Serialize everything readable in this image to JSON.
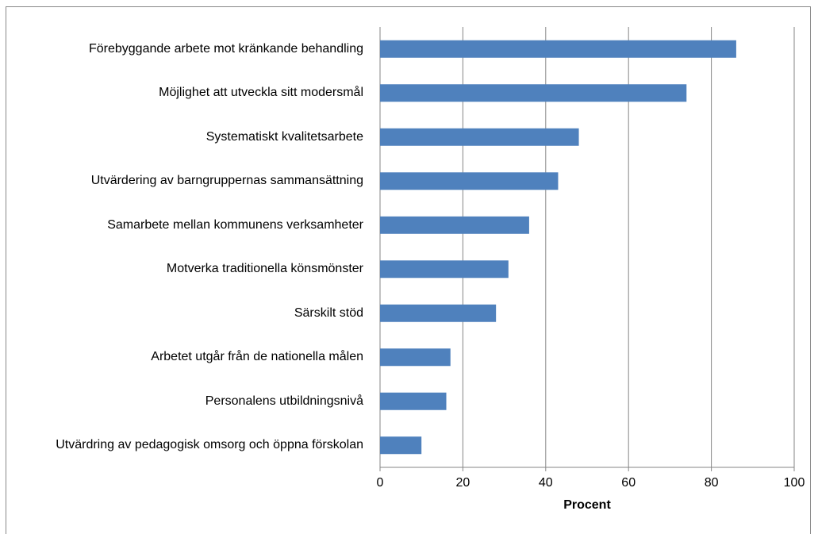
{
  "chart_data": {
    "type": "hbar",
    "categories": [
      "Förebyggande arbete mot kränkande behandling",
      "Möjlighet att utveckla sitt modersmål",
      "Systematiskt kvalitetsarbete",
      "Utvärdering av barngruppernas sammansättning",
      "Samarbete mellan kommunens verksamheter",
      "Motverka traditionella könsmönster",
      "Särskilt stöd",
      "Arbetet utgår från de nationella målen",
      "Personalens utbildningsnivå",
      "Utvärdring av pedagogisk omsorg och öppna förskolan"
    ],
    "values": [
      86,
      74,
      48,
      43,
      36,
      31,
      28,
      17,
      16,
      10
    ],
    "color": "#4f81bd",
    "xlabel": "Procent",
    "xlim": [
      0,
      100
    ],
    "xticks": [
      0,
      20,
      40,
      60,
      80,
      100
    ],
    "grid": true
  }
}
